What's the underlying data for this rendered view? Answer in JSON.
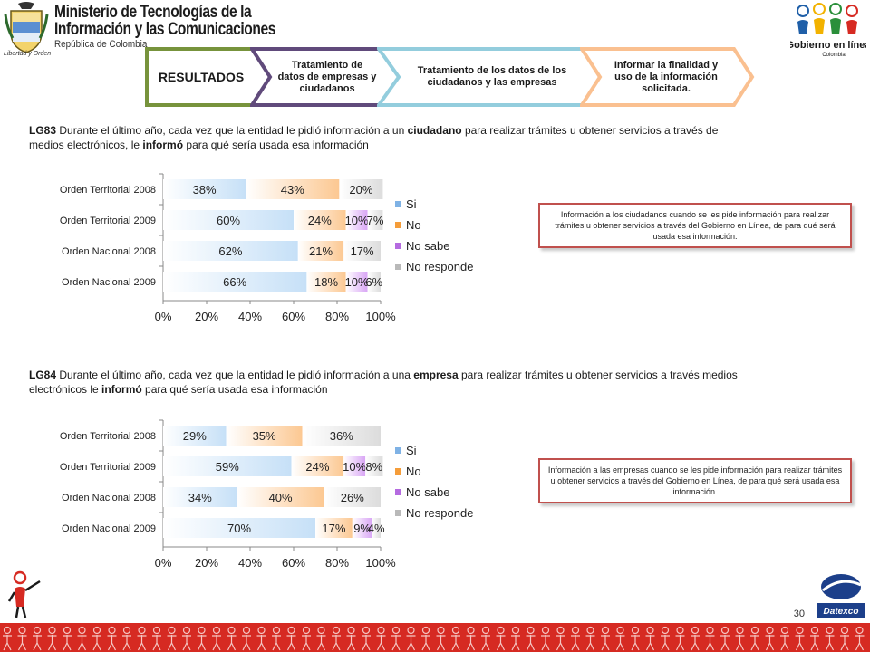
{
  "header": {
    "ministry_line1": "Ministerio de Tecnologías de la",
    "ministry_line2": "Información y las Comunicaciones",
    "ministry_line3": "República de Colombia",
    "coat_caption": "Libertad y Orden",
    "gel_name": "Gobierno en línea",
    "gel_country": "Colombia"
  },
  "steps": [
    {
      "label": "RESULTADOS",
      "color": "#77933c"
    },
    {
      "label": "Tratamiento de datos de empresas y ciudadanos",
      "color": "#604a7b"
    },
    {
      "label": "Tratamiento de los datos de los ciudadanos y las empresas",
      "color": "#93cddd"
    },
    {
      "label": "Informar la finalidad y uso de la información solicitada.",
      "color": "#fac090"
    }
  ],
  "questions": {
    "q1": {
      "code": "LG83",
      "pre": " Durante el último año,  cada vez que la entidad le pidió información a un ",
      "b1": "ciudadano",
      "mid": " para realizar trámites u obtener  servicios a través de medios electrónicos, le ",
      "b2": "informó",
      "post": " para qué sería usada esa información"
    },
    "q2": {
      "code": "LG84",
      "pre": " Durante el último año, cada vez que la entidad le pidió información a una ",
      "b1": "empresa",
      "mid": " para realizar  trámites  u obtener servicios a través medios electrónicos  le ",
      "b2": "informó",
      "post": " para qué sería usada esa información"
    }
  },
  "notes": {
    "note1": "Información a los ciudadanos cuando se les pide información para realizar trámites u obtener servicios a través del Gobierno en Línea, de para qué será usada esa información.",
    "note2": "Información a las empresas cuando se les pide información para realizar trámites u obtener servicios a través del Gobierno en Línea, de para qué será usada esa información."
  },
  "page_number": "30",
  "datexco": "Datexco",
  "colors": {
    "si": "#c6e0f7",
    "no": "#fcc892",
    "nosabe": "#d9a6f5",
    "noresponde": "#dcdcdc",
    "accent": "#c0504d",
    "footer": "#d62a22"
  },
  "chart_data": [
    {
      "type": "bar",
      "orientation": "horizontal-stacked",
      "categories": [
        "Orden Territorial 2008",
        "Orden Territorial 2009",
        "Orden Nacional 2008",
        "Orden Nacional 2009"
      ],
      "series": [
        {
          "name": "Si",
          "values": [
            38,
            60,
            62,
            66
          ],
          "labels": [
            "38%",
            "60%",
            "62%",
            "66%"
          ]
        },
        {
          "name": "No",
          "values": [
            43,
            24,
            21,
            18
          ],
          "labels": [
            "43%",
            "24%",
            "21%",
            "18%"
          ]
        },
        {
          "name": "No sabe",
          "values": [
            0,
            10,
            0,
            10
          ],
          "labels": [
            "",
            "10%",
            "",
            "10%"
          ]
        },
        {
          "name": "No responde",
          "values": [
            20,
            7,
            17,
            6
          ],
          "labels": [
            "20%",
            "7%",
            "17%",
            "6%"
          ]
        }
      ],
      "xticks": [
        "0%",
        "20%",
        "40%",
        "60%",
        "80%",
        "100%"
      ],
      "xlim": [
        0,
        100
      ],
      "legend": "right"
    },
    {
      "type": "bar",
      "orientation": "horizontal-stacked",
      "categories": [
        "Orden Territorial 2008",
        "Orden Territorial 2009",
        "Orden Nacional 2008",
        "Orden Nacional 2009"
      ],
      "series": [
        {
          "name": "Si",
          "values": [
            29,
            59,
            34,
            70
          ],
          "labels": [
            "29%",
            "59%",
            "34%",
            "70%"
          ]
        },
        {
          "name": "No",
          "values": [
            35,
            24,
            40,
            17
          ],
          "labels": [
            "35%",
            "24%",
            "40%",
            "17%"
          ]
        },
        {
          "name": "No sabe",
          "values": [
            0,
            10,
            0,
            9
          ],
          "labels": [
            "",
            "10%",
            "",
            "9%"
          ]
        },
        {
          "name": "No responde",
          "values": [
            36,
            8,
            26,
            4
          ],
          "labels": [
            "36%",
            "8%",
            "26%",
            "4%"
          ]
        }
      ],
      "xticks": [
        "0%",
        "20%",
        "40%",
        "60%",
        "80%",
        "100%"
      ],
      "xlim": [
        0,
        100
      ],
      "legend": "right"
    }
  ]
}
